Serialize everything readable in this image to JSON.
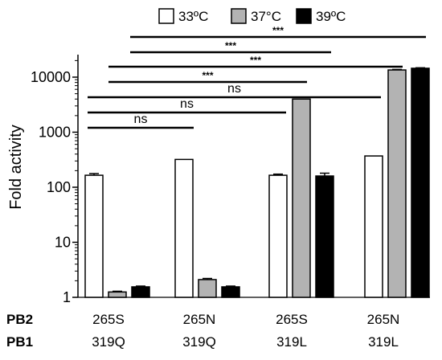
{
  "chart_data": {
    "type": "bar",
    "ylabel": "Fold activity",
    "yscale": "log",
    "ylim": [
      1,
      30000
    ],
    "yticks": [
      {
        "value": 1,
        "label": "1"
      },
      {
        "value": 10,
        "label": "10"
      },
      {
        "value": 100,
        "label": "100"
      },
      {
        "value": 1000,
        "label": "1000"
      },
      {
        "value": 10000,
        "label": "10000"
      }
    ],
    "row_labels": [
      "PB2",
      "PB1"
    ],
    "categories": [
      {
        "pb2": "265S",
        "pb1": "319Q"
      },
      {
        "pb2": "265N",
        "pb1": "319Q"
      },
      {
        "pb2": "265S",
        "pb1": "319L"
      },
      {
        "pb2": "265N",
        "pb1": "319L"
      }
    ],
    "series": [
      {
        "name": "33ºC",
        "color": "#ffffff",
        "values": [
          165,
          320,
          165,
          370
        ],
        "errors": [
          12,
          0,
          8,
          0
        ]
      },
      {
        "name": "37°C",
        "color": "#b3b3b3",
        "values": [
          1.25,
          2.1,
          4000,
          13500
        ],
        "errors": [
          0.04,
          0.1,
          0,
          300
        ]
      },
      {
        "name": "39ºC",
        "color": "#000000",
        "values": [
          1.55,
          1.55,
          160,
          14500
        ],
        "errors": [
          0.05,
          0.05,
          20,
          300
        ]
      }
    ],
    "legend": {
      "position": "top"
    },
    "significance": [
      {
        "label": "ns",
        "from": [
          0,
          0
        ],
        "to": [
          1,
          0
        ]
      },
      {
        "label": "ns",
        "from": [
          0,
          0
        ],
        "to": [
          2,
          0
        ]
      },
      {
        "label": "ns",
        "from": [
          0,
          0
        ],
        "to": [
          3,
          0
        ]
      },
      {
        "label": "***",
        "from": [
          0,
          1
        ],
        "to": [
          2,
          1
        ]
      },
      {
        "label": "***",
        "from": [
          0,
          1
        ],
        "to": [
          3,
          1
        ]
      },
      {
        "label": "***",
        "from": [
          0,
          2
        ],
        "to": [
          2,
          2
        ]
      },
      {
        "label": "***",
        "from": [
          0,
          2
        ],
        "to": [
          3,
          2
        ]
      }
    ]
  }
}
